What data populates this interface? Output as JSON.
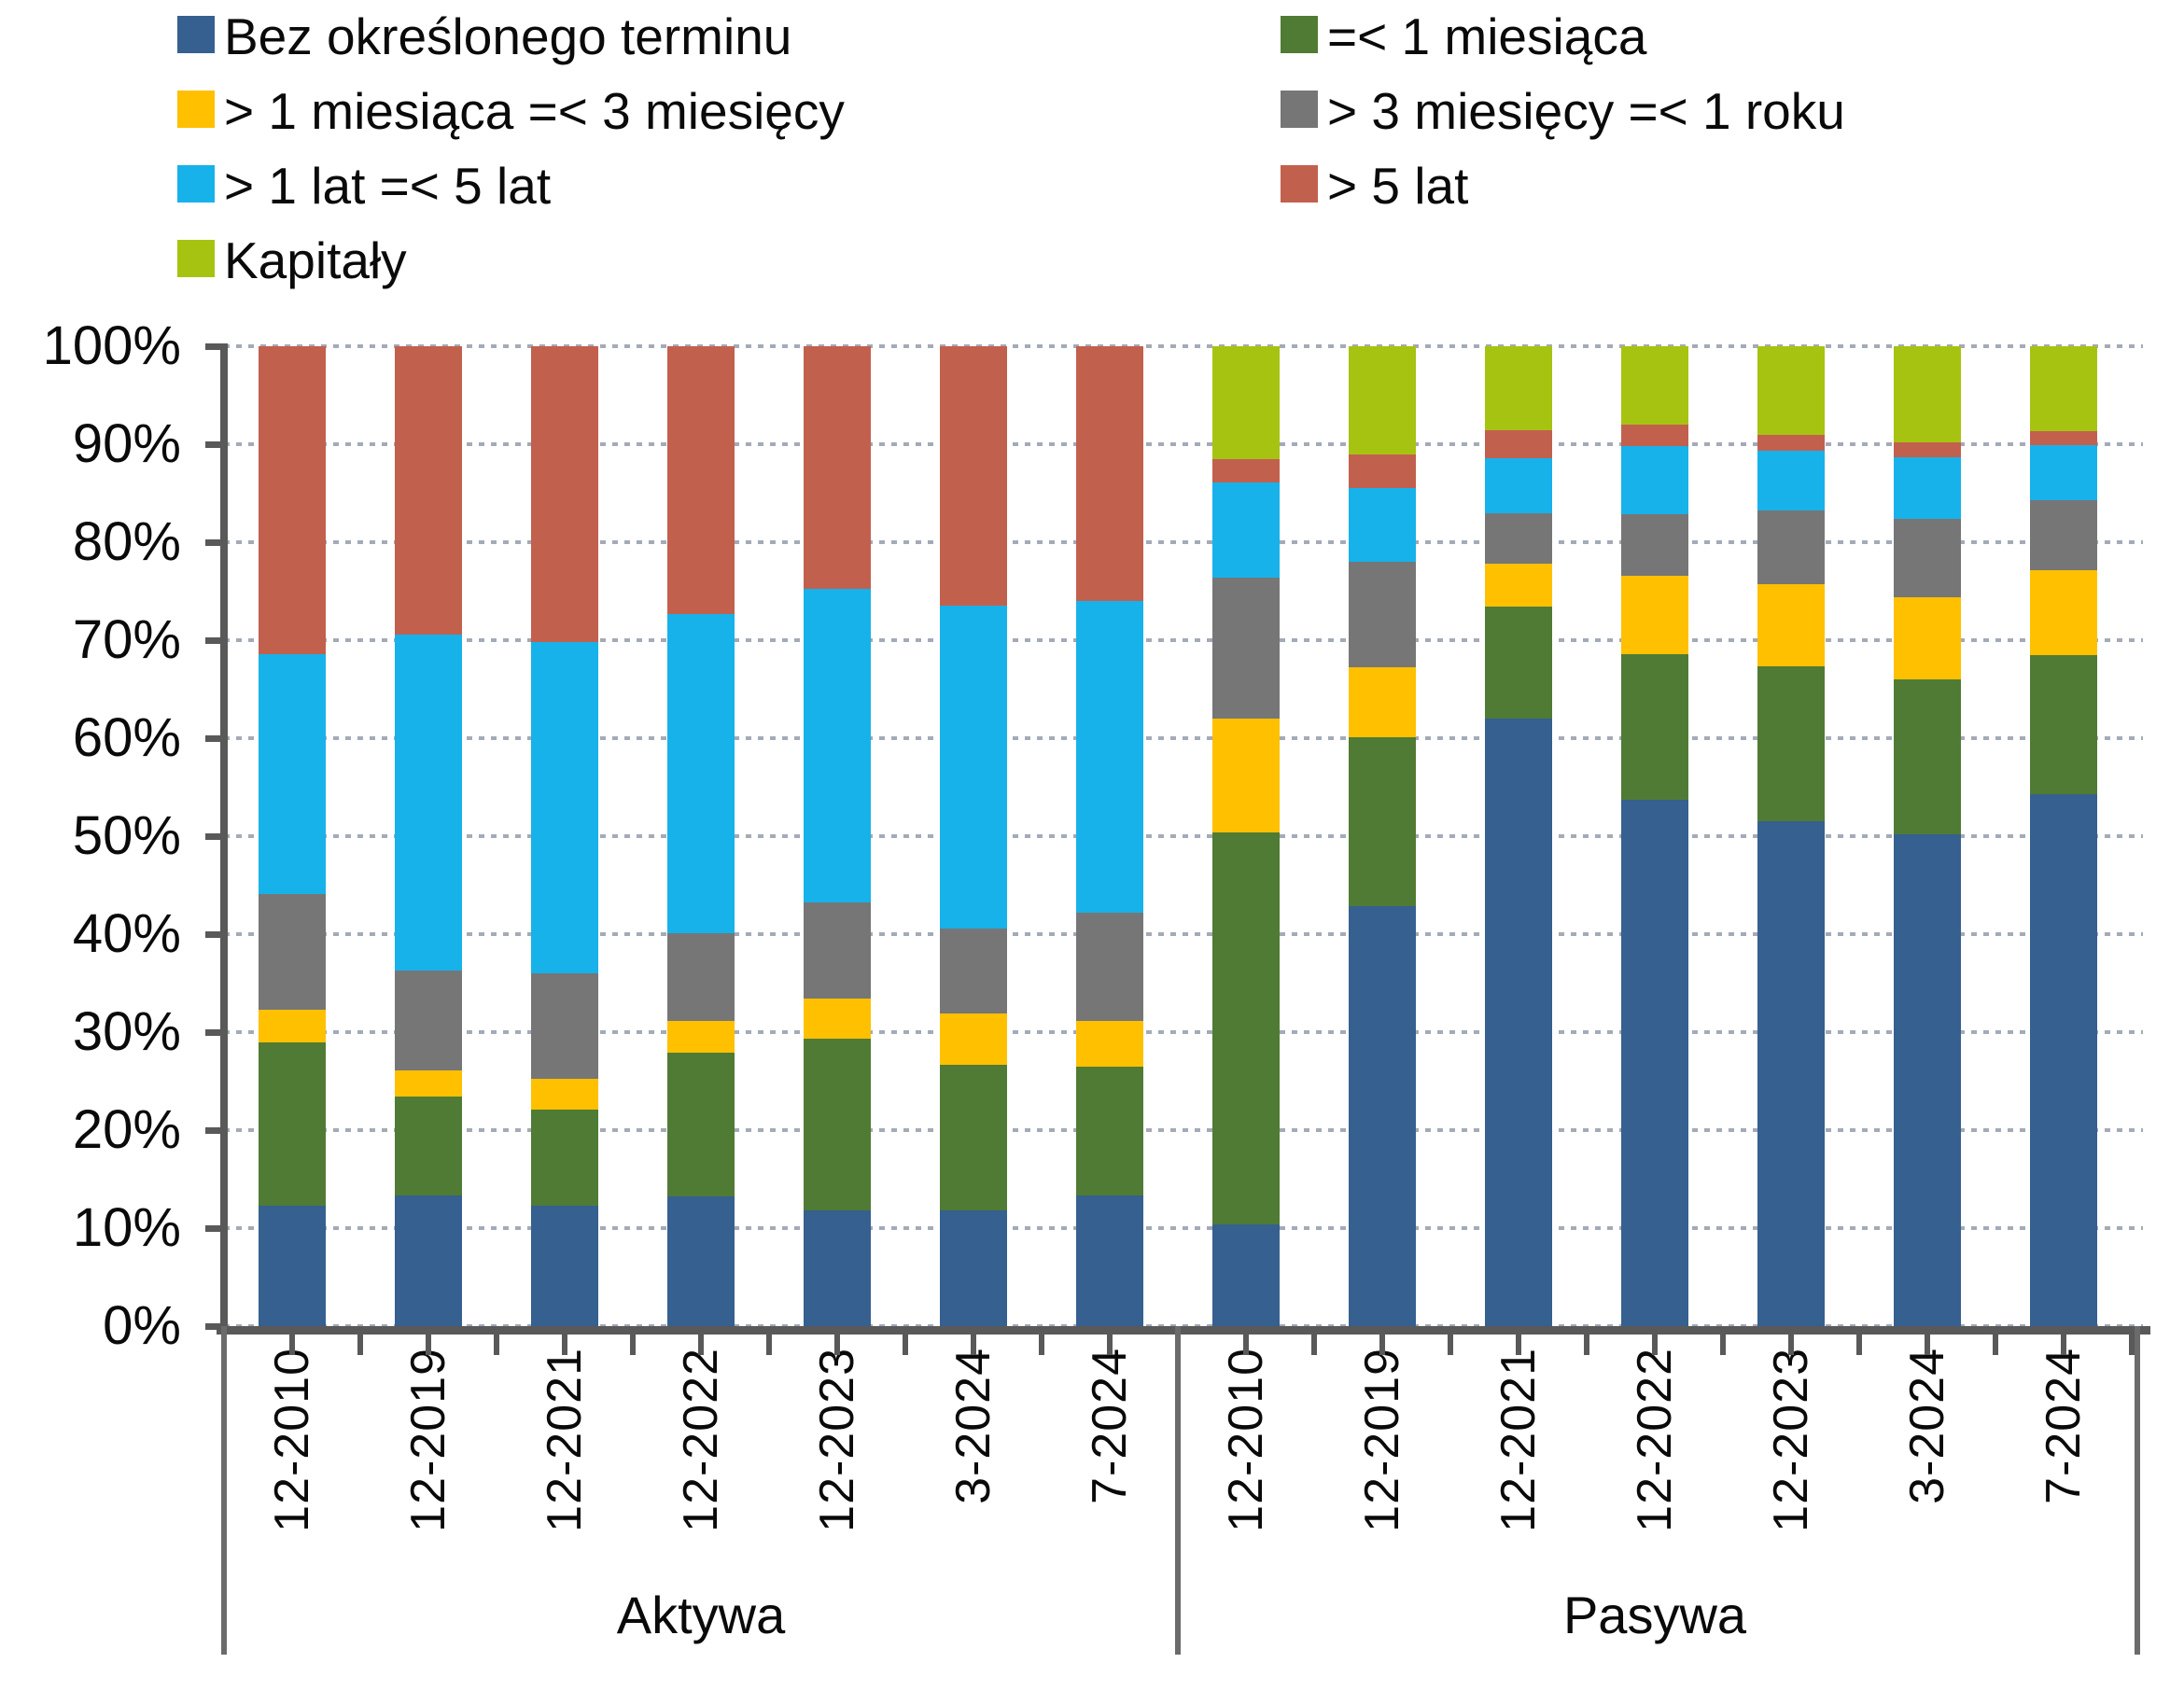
{
  "legend": {
    "items": [
      {
        "label": "Bez określonego terminu",
        "color": "#35608F"
      },
      {
        "label": "=< 1 miesiąca",
        "color": "#507B34"
      },
      {
        "label": "> 1 miesiąca =< 3 miesięcy",
        "color": "#FFC000"
      },
      {
        "label": "> 3 miesięcy =< 1 roku",
        "color": "#767676"
      },
      {
        "label": "> 1 lat =< 5 lat",
        "color": "#17B2EA"
      },
      {
        "label": "> 5 lat",
        "color": "#C2604E"
      },
      {
        "label": "Kapitały",
        "color": "#A7C311"
      }
    ]
  },
  "y_axis": {
    "tick_labels": [
      "0%",
      "10%",
      "20%",
      "30%",
      "40%",
      "50%",
      "60%",
      "70%",
      "80%",
      "90%",
      "100%"
    ]
  },
  "chart_data": {
    "type": "bar",
    "subtype": "100-percent-stacked-column",
    "title": "",
    "xlabel": "",
    "ylabel": "",
    "ylim": [
      0,
      100
    ],
    "grid": "horizontal dashed every 10%",
    "legend_position": "top-left two columns",
    "categories": [
      "12-2010",
      "12-2019",
      "12-2021",
      "12-2022",
      "12-2023",
      "3-2024",
      "7-2024"
    ],
    "groups": [
      {
        "label": "Aktywa"
      },
      {
        "label": "Pasywa"
      }
    ],
    "series": [
      {
        "name": "Bez określonego terminu",
        "color": "#35608F",
        "values": {
          "Aktywa": [
            12.3,
            13.3,
            12.3,
            13.2,
            11.8,
            11.8,
            13.3
          ],
          "Pasywa": [
            10.4,
            42.9,
            62.0,
            53.7,
            51.5,
            50.2,
            54.3
          ]
        }
      },
      {
        "name": "=< 1 miesiąca",
        "color": "#507B34",
        "values": {
          "Aktywa": [
            16.7,
            10.1,
            9.8,
            14.7,
            17.5,
            14.9,
            13.2
          ],
          "Pasywa": [
            40.0,
            17.2,
            11.4,
            14.9,
            15.8,
            15.8,
            14.2
          ]
        }
      },
      {
        "name": "> 1 miesiąca =< 3 miesięcy",
        "color": "#FFC000",
        "values": {
          "Aktywa": [
            3.3,
            2.7,
            3.1,
            3.2,
            4.1,
            5.2,
            4.6
          ],
          "Pasywa": [
            11.6,
            7.1,
            4.4,
            8.0,
            8.4,
            8.4,
            8.6
          ]
        }
      },
      {
        "name": "> 3 miesięcy =< 1 roku",
        "color": "#767676",
        "values": {
          "Aktywa": [
            11.8,
            10.2,
            10.8,
            9.0,
            9.8,
            8.7,
            11.1
          ],
          "Pasywa": [
            14.4,
            10.8,
            5.2,
            6.3,
            7.5,
            8.0,
            7.2
          ]
        }
      },
      {
        "name": "> 1 lat =< 5 lat",
        "color": "#17B2EA",
        "values": {
          "Aktywa": [
            24.5,
            34.3,
            33.8,
            32.6,
            32.0,
            32.9,
            31.8
          ],
          "Pasywa": [
            9.7,
            7.5,
            5.6,
            6.9,
            6.1,
            6.3,
            5.6
          ]
        }
      },
      {
        "name": "> 5 lat",
        "color": "#C2604E",
        "values": {
          "Aktywa": [
            31.4,
            29.4,
            30.2,
            27.3,
            24.8,
            26.5,
            26.0
          ],
          "Pasywa": [
            2.4,
            3.5,
            2.8,
            2.2,
            1.7,
            1.5,
            1.4
          ]
        }
      },
      {
        "name": "Kapitały",
        "color": "#A7C311",
        "values": {
          "Aktywa": [
            0,
            0,
            0,
            0,
            0,
            0,
            0
          ],
          "Pasywa": [
            11.5,
            11.0,
            8.6,
            8.0,
            9.0,
            9.8,
            8.7
          ]
        }
      }
    ]
  }
}
